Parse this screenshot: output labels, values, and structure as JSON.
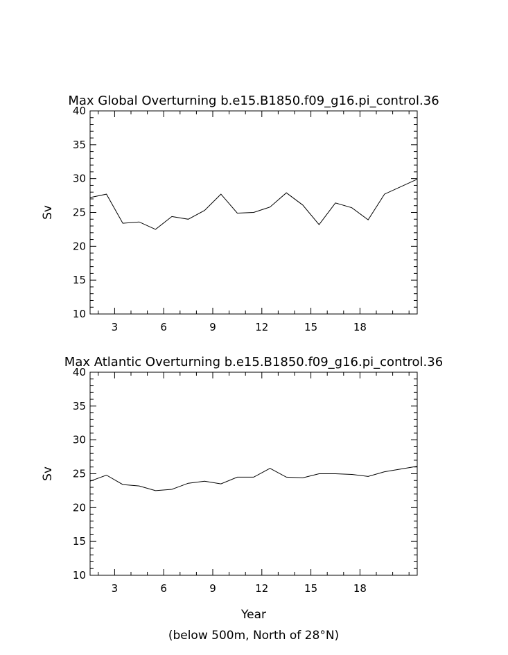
{
  "chart_data": [
    {
      "type": "line",
      "title": "Max Global Overturning b.e15.B1850.f09_g16.pi_control.36",
      "ylabel": "Sv",
      "xlabel": "",
      "xlim": [
        1.5,
        21.5
      ],
      "ylim": [
        10,
        40
      ],
      "x_ticks": [
        3,
        6,
        9,
        12,
        15,
        18
      ],
      "y_ticks": [
        10,
        15,
        20,
        25,
        30,
        35,
        40
      ],
      "grid": false,
      "series": [
        {
          "x": [
            1.5,
            2.5,
            3.5,
            4.5,
            5.5,
            6.5,
            7.5,
            8.5,
            9.5,
            10.5,
            11.5,
            12.5,
            13.5,
            14.5,
            15.5,
            16.5,
            17.5,
            18.5,
            19.5,
            21.5
          ],
          "values": [
            27.2,
            27.7,
            23.4,
            23.6,
            22.5,
            24.4,
            24.0,
            25.3,
            27.7,
            24.9,
            25.0,
            25.8,
            27.9,
            26.1,
            23.2,
            26.4,
            25.7,
            23.9,
            27.7,
            29.9
          ]
        }
      ]
    },
    {
      "type": "line",
      "title": "Max Atlantic Overturning b.e15.B1850.f09_g16.pi_control.36",
      "ylabel": "Sv",
      "xlabel": "Year",
      "footnote": "(below 500m, North of 28°N)",
      "xlim": [
        1.5,
        21.5
      ],
      "ylim": [
        10,
        40
      ],
      "x_ticks": [
        3,
        6,
        9,
        12,
        15,
        18
      ],
      "y_ticks": [
        10,
        15,
        20,
        25,
        30,
        35,
        40
      ],
      "grid": false,
      "series": [
        {
          "x": [
            1.5,
            2.5,
            3.5,
            4.5,
            5.5,
            6.5,
            7.5,
            8.5,
            9.5,
            10.5,
            11.5,
            12.5,
            13.5,
            14.5,
            15.5,
            16.5,
            17.5,
            18.5,
            19.5,
            21.5
          ],
          "values": [
            23.9,
            24.8,
            23.4,
            23.2,
            22.5,
            22.7,
            23.6,
            23.9,
            23.5,
            24.5,
            24.5,
            25.8,
            24.5,
            24.4,
            25.0,
            25.0,
            24.9,
            24.6,
            25.3,
            26.1
          ]
        }
      ]
    }
  ]
}
